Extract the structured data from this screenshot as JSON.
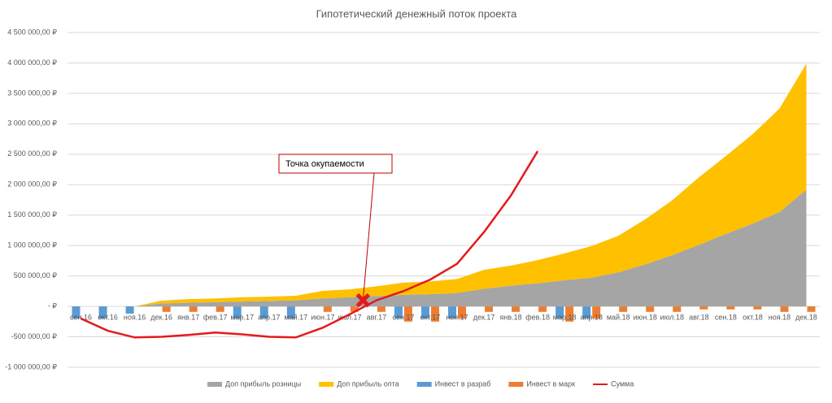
{
  "chart_data": {
    "type": "combo",
    "title": "Гипотетический денежный поток проекта",
    "categories": [
      "сен.16",
      "окт.16",
      "ноя.16",
      "дек.16",
      "янв.17",
      "фев.17",
      "мар.17",
      "апр.17",
      "май.17",
      "июн.17",
      "июл.17",
      "авг.17",
      "сен.17",
      "окт.17",
      "ноя.17",
      "дек.17",
      "янв.18",
      "фев.18",
      "мар.18",
      "апр.18",
      "май.18",
      "июн.18",
      "июл.18",
      "авг.18",
      "сен.18",
      "окт.18",
      "ноя.18",
      "дек.18"
    ],
    "series": [
      {
        "name": "Доп прибыль розницы",
        "kind": "area",
        "color": "#a5a5a5",
        "values": [
          0,
          0,
          0,
          50000,
          60000,
          70000,
          80000,
          90000,
          100000,
          130000,
          150000,
          170000,
          190000,
          200000,
          220000,
          290000,
          340000,
          380000,
          430000,
          470000,
          560000,
          690000,
          840000,
          1010000,
          1190000,
          1360000,
          1550000,
          1920000
        ]
      },
      {
        "name": "Доп прибыль опта",
        "kind": "area",
        "color": "#ffc000",
        "values": [
          0,
          0,
          0,
          45000,
          60000,
          60000,
          70000,
          70000,
          75000,
          125000,
          130000,
          160000,
          200000,
          210000,
          230000,
          310000,
          330000,
          380000,
          440000,
          520000,
          600000,
          740000,
          900000,
          1110000,
          1280000,
          1470000,
          1700000,
          2070000
        ]
      },
      {
        "name": "Инвест в разраб",
        "kind": "bar",
        "color": "#5b9bd5",
        "values": [
          -200000,
          -200000,
          -120000,
          0,
          0,
          0,
          -200000,
          -200000,
          -200000,
          0,
          0,
          0,
          -200000,
          -200000,
          -200000,
          0,
          0,
          0,
          -200000,
          -200000,
          0,
          0,
          0,
          0,
          0,
          0,
          0,
          0
        ]
      },
      {
        "name": "Инвест в марк",
        "kind": "bar",
        "color": "#ed7d31",
        "values": [
          0,
          0,
          0,
          -90000,
          -90000,
          -90000,
          0,
          0,
          0,
          -90000,
          -90000,
          -90000,
          -250000,
          -250000,
          -200000,
          -90000,
          -90000,
          -90000,
          -250000,
          -200000,
          -90000,
          -90000,
          -90000,
          -50000,
          -50000,
          -50000,
          -90000,
          -90000
        ]
      },
      {
        "name": "Сумма",
        "kind": "line",
        "color": "#e31a1c",
        "values": [
          -200000,
          -400000,
          -510000,
          -500000,
          -470000,
          -430000,
          -460000,
          -500000,
          -510000,
          -350000,
          -130000,
          100000,
          250000,
          440000,
          700000,
          1220000,
          1820000,
          2550000,
          null,
          null,
          null,
          null,
          null,
          null,
          null,
          null,
          null,
          null
        ]
      }
    ],
    "ylim": [
      -1000000,
      4500000
    ],
    "yticks": [
      {
        "value": 4500000,
        "label": "4 500 000,00 ₽"
      },
      {
        "value": 4000000,
        "label": "4 000 000,00 ₽"
      },
      {
        "value": 3500000,
        "label": "3 500 000,00 ₽"
      },
      {
        "value": 3000000,
        "label": "3 000 000,00 ₽"
      },
      {
        "value": 2500000,
        "label": "2 500 000,00 ₽"
      },
      {
        "value": 2000000,
        "label": "2 000 000,00 ₽"
      },
      {
        "value": 1500000,
        "label": "1 500 000,00 ₽"
      },
      {
        "value": 1000000,
        "label": "1 000 000,00 ₽"
      },
      {
        "value": 500000,
        "label": "500 000,00 ₽"
      },
      {
        "value": 0,
        "label": "- ₽"
      },
      {
        "value": -500000,
        "label": "-500 000,00 ₽"
      },
      {
        "value": -1000000,
        "label": "-1 000 000,00 ₽"
      }
    ],
    "grid": true,
    "legend": "bottom",
    "annotation": {
      "text": "Точка окупаемости",
      "index": 10.5,
      "value": 100000
    }
  }
}
